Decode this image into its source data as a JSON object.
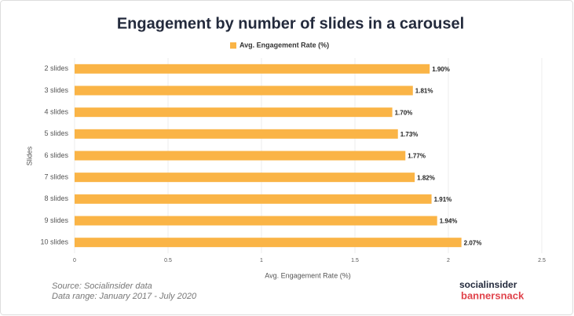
{
  "chart_data": {
    "type": "hbar",
    "title": "Engagement by number of slides in a carousel",
    "categories": [
      "2 slides",
      "3 slides",
      "4 slides",
      "5 slides",
      "6 slides",
      "7 slides",
      "8 slides",
      "9 slides",
      "10 slides"
    ],
    "series": [
      {
        "name": "Avg. Engagement Rate (%)",
        "color": "#fab446",
        "values": [
          1.9,
          1.81,
          1.7,
          1.73,
          1.77,
          1.82,
          1.91,
          1.94,
          2.07
        ],
        "value_labels": [
          "1.90%",
          "1.81%",
          "1.70%",
          "1.73%",
          "1.77%",
          "1.82%",
          "1.91%",
          "1.94%",
          "2.07%"
        ]
      }
    ],
    "x_label": "Avg. Engagement Rate (%)",
    "y_label": "Slides",
    "xlim": [
      0,
      2.5
    ],
    "xticks": [
      0,
      0.5,
      1,
      1.5,
      2,
      2.5
    ],
    "grid": true,
    "legend": "top"
  },
  "footer": {
    "source": "Source: Socialinsider data",
    "date_range": "Data range: January 2017 - July 2020",
    "logo_top": "socialinsider",
    "logo_bottom": "bannersnack"
  }
}
